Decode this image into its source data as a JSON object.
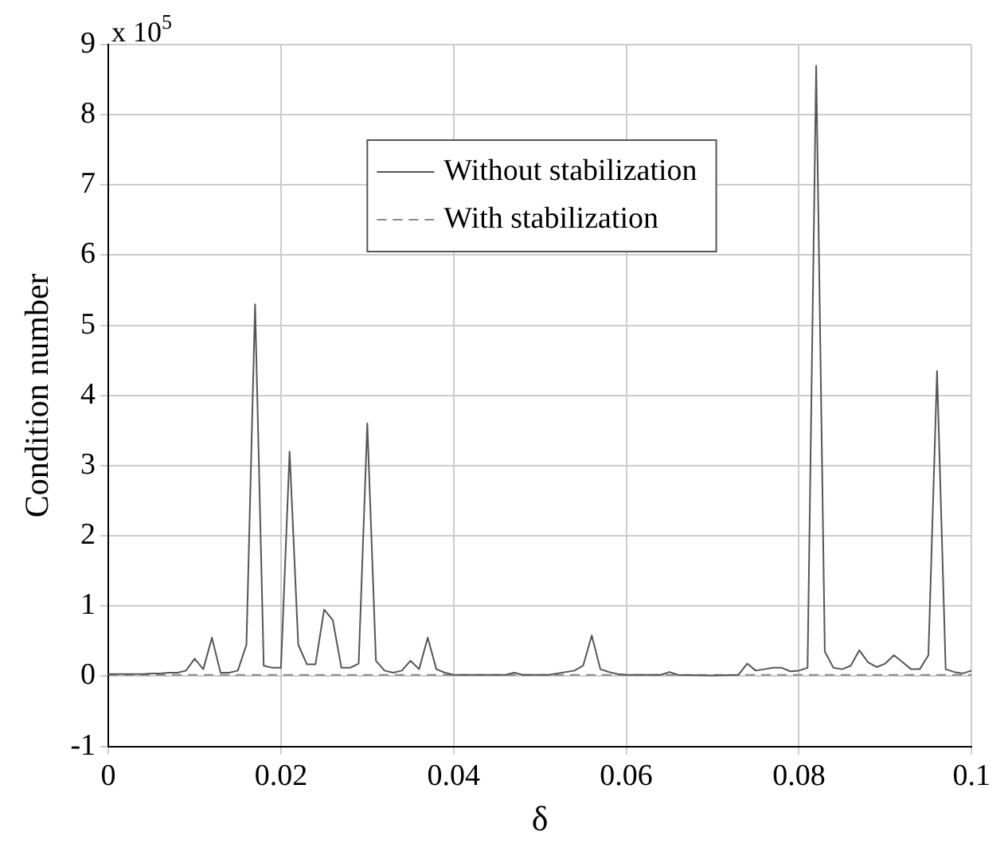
{
  "chart_data": {
    "type": "line",
    "xlabel": "δ",
    "ylabel": "Condition number",
    "annotations": [
      "x 10$^{5}$"
    ],
    "xlim": [
      0,
      0.1
    ],
    "xticks": [
      0,
      0.02,
      0.04,
      0.06,
      0.08,
      0.1
    ],
    "ylim": [
      -1,
      9
    ],
    "yticks": [
      -1,
      0,
      1,
      2,
      3,
      4,
      5,
      6,
      7,
      8,
      9
    ],
    "grid": true,
    "legend": "top",
    "marker": "none",
    "series": [
      {
        "name": "Without stabilization",
        "color": "#555555",
        "line_style": "solid",
        "x": [
          0,
          0.001,
          0.002,
          0.003,
          0.004,
          0.005,
          0.006,
          0.007,
          0.008,
          0.009,
          0.01,
          0.011,
          0.012,
          0.013,
          0.014,
          0.015,
          0.016,
          0.017,
          0.018,
          0.019,
          0.02,
          0.021,
          0.022,
          0.023,
          0.024,
          0.025,
          0.026,
          0.027,
          0.028,
          0.029,
          0.03,
          0.031,
          0.032,
          0.033,
          0.034,
          0.035,
          0.036,
          0.037,
          0.038,
          0.039,
          0.04,
          0.043,
          0.046,
          0.047,
          0.048,
          0.051,
          0.054,
          0.055,
          0.056,
          0.057,
          0.058,
          0.059,
          0.06,
          0.064,
          0.065,
          0.066,
          0.07,
          0.073,
          0.074,
          0.075,
          0.076,
          0.077,
          0.078,
          0.079,
          0.08,
          0.081,
          0.082,
          0.083,
          0.084,
          0.085,
          0.086,
          0.087,
          0.088,
          0.089,
          0.09,
          0.091,
          0.092,
          0.093,
          0.094,
          0.095,
          0.096,
          0.097,
          0.098,
          0.099,
          0.1
        ],
        "values": [
          0.03,
          0.03,
          0.03,
          0.03,
          0.03,
          0.04,
          0.04,
          0.05,
          0.05,
          0.08,
          0.25,
          0.1,
          0.55,
          0.05,
          0.05,
          0.08,
          0.45,
          5.3,
          0.15,
          0.12,
          0.12,
          3.2,
          0.45,
          0.17,
          0.17,
          0.95,
          0.8,
          0.12,
          0.12,
          0.18,
          3.6,
          0.22,
          0.08,
          0.05,
          0.08,
          0.22,
          0.1,
          0.55,
          0.1,
          0.05,
          0.02,
          0.02,
          0.02,
          0.05,
          0.02,
          0.02,
          0.08,
          0.15,
          0.58,
          0.1,
          0.06,
          0.03,
          0.02,
          0.02,
          0.06,
          0.02,
          0.01,
          0.02,
          0.18,
          0.08,
          0.1,
          0.12,
          0.12,
          0.07,
          0.08,
          0.12,
          8.7,
          0.35,
          0.12,
          0.1,
          0.15,
          0.37,
          0.2,
          0.13,
          0.18,
          0.3,
          0.2,
          0.1,
          0.1,
          0.3,
          4.35,
          0.1,
          0.06,
          0.04,
          0.08
        ]
      },
      {
        "name": "With stabilization",
        "color": "#888888",
        "line_style": "dashed",
        "x": [
          0,
          0.1
        ],
        "values": [
          0.02,
          0.02
        ]
      }
    ]
  }
}
